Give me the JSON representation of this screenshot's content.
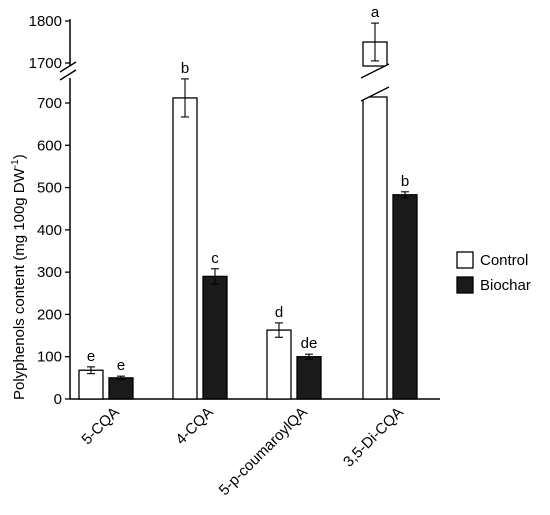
{
  "chart_data": {
    "type": "bar",
    "ylabel_main": "Polyphenols content (mg 100g DW",
    "ylabel_sup": "-1",
    "ylabel_end": ")",
    "categories": [
      "5-CQA",
      "4-CQA",
      "5-p-coumaroylQA",
      "3,5-Di-CQA"
    ],
    "series": [
      {
        "name": "Control",
        "color": "#ffffff",
        "values": [
          68,
          712,
          163,
          1750
        ],
        "errors": [
          8,
          45,
          17,
          45
        ],
        "sig": [
          "e",
          "b",
          "d",
          "a"
        ]
      },
      {
        "name": "Biochar",
        "color": "#1a1a1a",
        "values": [
          50,
          290,
          100,
          483
        ],
        "errors": [
          4,
          18,
          6,
          7
        ],
        "sig": [
          "e",
          "c",
          "de",
          "b"
        ]
      }
    ],
    "yaxis_lower": {
      "range": [
        0,
        700
      ],
      "ticks": [
        0,
        100,
        200,
        300,
        400,
        500,
        600,
        700
      ]
    },
    "yaxis_upper": {
      "range": [
        1700,
        1800
      ],
      "ticks": [
        1700,
        1800
      ]
    },
    "axis_break": true,
    "legend_position": "right"
  }
}
